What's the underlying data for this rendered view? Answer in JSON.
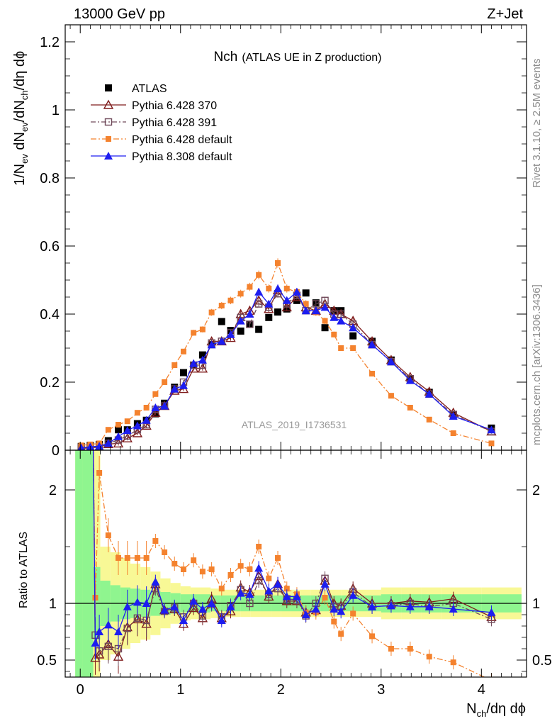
{
  "header": {
    "left": "13000 GeV pp",
    "right": "Z+Jet"
  },
  "side_labels": {
    "top": "Rivet 3.1.10, ≥ 2.5M events",
    "bottom": "mcplots.cern.ch [arXiv:1306.3436]"
  },
  "plot_title_main": "Nch",
  "plot_title_sub": "(ATLAS UE in Z production)",
  "analysis_label": "ATLAS_2019_I1736531",
  "x_axis_label": "N",
  "x_axis_label_sub": "ch",
  "x_axis_label_rest": "/dη dϕ",
  "ratio_label": "Ratio to ATLAS",
  "y_axis_parts": {
    "p1": "1/N",
    "s1": "ev",
    "p2": " dN",
    "s2": "ev",
    "p3": "/dN",
    "s3": "ch",
    "p4": "/dη dϕ"
  },
  "legend": [
    {
      "label": "ATLAS"
    },
    {
      "label": "Pythia 6.428 370"
    },
    {
      "label": "Pythia 6.428 391"
    },
    {
      "label": "Pythia 6.428 default"
    },
    {
      "label": "Pythia 8.308 default"
    }
  ],
  "colors": {
    "atlas": "#000000",
    "p370": "#7f1c1c",
    "p391": "#704a5a",
    "pdef": "#f4822e",
    "p8": "#1d1df0",
    "band_inner": "#8ff58f",
    "band_outer": "#f8f896"
  },
  "chart_data": [
    {
      "type": "scatter",
      "panel": "main",
      "xlabel": "Nch/dη dϕ",
      "ylabel": "1/Nev dNev/dNch/dη dϕ",
      "xlim": [
        -0.15,
        4.45
      ],
      "ylim": [
        0,
        1.25
      ],
      "x_ticks": [
        0,
        1,
        2,
        3,
        4
      ],
      "y_ticks": [
        0,
        0.2,
        0.4,
        0.6,
        0.8,
        1,
        1.2
      ],
      "x": [
        0.01,
        0.1,
        0.19,
        0.28,
        0.38,
        0.47,
        0.57,
        0.66,
        0.75,
        0.84,
        0.94,
        1.03,
        1.13,
        1.22,
        1.31,
        1.41,
        1.5,
        1.6,
        1.69,
        1.78,
        1.88,
        1.97,
        2.06,
        2.16,
        2.25,
        2.35,
        2.44,
        2.53,
        2.6,
        2.72,
        2.91,
        3.1,
        3.29,
        3.48,
        3.72,
        4.1
      ],
      "series": [
        {
          "name": "ATLAS",
          "marker": "filled-square",
          "values": [
            0.011,
            0.014,
            0.017,
            0.028,
            0.06,
            0.06,
            0.078,
            0.088,
            0.107,
            0.138,
            0.185,
            0.228,
            0.25,
            0.28,
            0.31,
            0.378,
            0.352,
            0.35,
            0.37,
            0.355,
            0.39,
            0.406,
            0.415,
            0.44,
            0.462,
            0.433,
            0.36,
            0.41,
            0.41,
            0.336,
            0.32,
            0.265,
            0.21,
            0.17,
            0.105,
            0.065
          ]
        },
        {
          "name": "Pythia 6.428 370",
          "marker": "open-triangle",
          "values": [
            0.005,
            0.007,
            0.009,
            0.018,
            0.02,
            0.035,
            0.05,
            0.072,
            0.11,
            0.13,
            0.175,
            0.18,
            0.24,
            0.24,
            0.32,
            0.32,
            0.33,
            0.4,
            0.41,
            0.44,
            0.415,
            0.47,
            0.42,
            0.45,
            0.42,
            0.41,
            0.43,
            0.41,
            0.4,
            0.38,
            0.32,
            0.265,
            0.215,
            0.172,
            0.11,
            0.055
          ]
        },
        {
          "name": "Pythia 6.428 391",
          "marker": "open-square",
          "values": [
            0.008,
            0.009,
            0.01,
            0.02,
            0.03,
            0.042,
            0.06,
            0.075,
            0.12,
            0.13,
            0.18,
            0.2,
            0.25,
            0.25,
            0.315,
            0.32,
            0.345,
            0.39,
            0.37,
            0.43,
            0.42,
            0.46,
            0.43,
            0.455,
            0.41,
            0.43,
            0.44,
            0.4,
            0.4,
            0.37,
            0.31,
            0.26,
            0.21,
            0.165,
            0.105,
            0.055
          ]
        },
        {
          "name": "Pythia 6.428 default",
          "marker": "filled-square",
          "values": [
            0.014,
            0.017,
            0.02,
            0.06,
            0.075,
            0.085,
            0.11,
            0.125,
            0.165,
            0.2,
            0.25,
            0.29,
            0.345,
            0.355,
            0.405,
            0.425,
            0.44,
            0.46,
            0.48,
            0.515,
            0.475,
            0.55,
            0.475,
            0.465,
            0.43,
            0.405,
            0.38,
            0.34,
            0.3,
            0.3,
            0.225,
            0.16,
            0.125,
            0.09,
            0.05,
            0.02
          ]
        },
        {
          "name": "Pythia 8.308 default",
          "marker": "filled-triangle",
          "values": [
            0.007,
            0.01,
            0.012,
            0.02,
            0.04,
            0.058,
            0.072,
            0.088,
            0.125,
            0.13,
            0.18,
            0.19,
            0.255,
            0.265,
            0.31,
            0.32,
            0.34,
            0.38,
            0.4,
            0.465,
            0.43,
            0.475,
            0.44,
            0.465,
            0.41,
            0.41,
            0.42,
            0.39,
            0.38,
            0.36,
            0.31,
            0.26,
            0.205,
            0.165,
            0.1,
            0.06
          ]
        }
      ]
    },
    {
      "type": "scatter",
      "panel": "ratio",
      "ylabel": "Ratio to ATLAS",
      "ylim": [
        0.35,
        2.35
      ],
      "y_ticks": [
        0.5,
        1,
        2
      ],
      "reference_line": 1,
      "x": [
        0.15,
        0.19,
        0.28,
        0.38,
        0.47,
        0.57,
        0.66,
        0.75,
        0.84,
        0.94,
        1.03,
        1.13,
        1.22,
        1.31,
        1.41,
        1.5,
        1.6,
        1.69,
        1.78,
        1.88,
        1.97,
        2.06,
        2.16,
        2.25,
        2.35,
        2.44,
        2.53,
        2.6,
        2.72,
        2.91,
        3.1,
        3.29,
        3.48,
        3.72,
        4.1
      ],
      "series": [
        {
          "name": "Pythia 6.428 370",
          "values": [
            0.52,
            0.55,
            0.64,
            0.53,
            0.79,
            0.86,
            0.82,
            1.17,
            0.94,
            0.95,
            0.82,
            0.96,
            0.87,
            1.04,
            0.87,
            0.93,
            1.14,
            1.1,
            1.24,
            1.06,
            1.17,
            1.02,
            1.02,
            0.92,
            0.94,
            1.2,
            1.0,
            0.98,
            1.13,
            1.0,
            1.0,
            1.02,
            1.01,
            1.04,
            0.88
          ]
        },
        {
          "name": "Pythia 6.428 391",
          "values": [
            0.72,
            0.58,
            0.62,
            0.6,
            0.78,
            0.87,
            0.85,
            1.13,
            0.93,
            0.96,
            0.88,
            1.0,
            0.89,
            0.99,
            0.88,
            0.98,
            1.12,
            1.0,
            1.2,
            1.08,
            1.13,
            1.04,
            1.03,
            0.89,
            1.0,
            1.22,
            0.97,
            0.97,
            1.1,
            0.97,
            0.98,
            1.0,
            0.97,
            1.0,
            0.86
          ]
        },
        {
          "name": "Pythia 6.428 default",
          "values": [
            1.05,
            2.15,
            1.6,
            1.4,
            1.4,
            1.4,
            1.4,
            1.55,
            1.45,
            1.35,
            1.3,
            1.38,
            1.28,
            1.3,
            1.13,
            1.25,
            1.33,
            1.3,
            1.5,
            1.22,
            1.4,
            1.13,
            1.08,
            0.92,
            0.92,
            1.05,
            0.84,
            0.73,
            0.91,
            0.71,
            0.6,
            0.6,
            0.53,
            0.48,
            0.32
          ]
        },
        {
          "name": "Pythia 8.308 default",
          "values": [
            0.65,
            0.75,
            0.81,
            0.75,
            0.97,
            1.01,
            1.0,
            1.19,
            0.94,
            0.97,
            0.85,
            1.02,
            0.95,
            1.0,
            0.85,
            0.97,
            1.09,
            1.08,
            1.31,
            1.11,
            1.17,
            1.06,
            1.06,
            0.9,
            0.95,
            1.17,
            0.95,
            0.93,
            1.07,
            0.97,
            0.98,
            0.97,
            0.97,
            0.95,
            0.92
          ]
        }
      ],
      "band_x": [
        -0.05,
        0.02,
        0.13,
        0.2,
        0.3,
        0.4,
        0.5,
        0.6,
        0.7,
        0.8,
        0.9,
        1.0,
        1.1,
        1.2,
        1.3,
        1.4,
        1.5,
        1.6,
        1.7,
        1.8,
        1.9,
        2.0,
        2.1,
        2.2,
        2.3,
        2.4,
        2.5,
        2.6,
        2.7,
        2.8,
        3.0,
        3.2,
        3.4,
        3.6,
        3.8,
        4.0,
        4.4
      ],
      "band_inner": [
        [
          0.3,
          3.0
        ],
        [
          0.3,
          3.0
        ],
        [
          0.68,
          1.32
        ],
        [
          0.8,
          1.2
        ],
        [
          0.84,
          1.16
        ],
        [
          0.86,
          1.14
        ],
        [
          0.87,
          1.13
        ],
        [
          0.88,
          1.12
        ],
        [
          0.89,
          1.11
        ],
        [
          0.9,
          1.1
        ],
        [
          0.91,
          1.09
        ],
        [
          0.92,
          1.08
        ],
        [
          0.92,
          1.08
        ],
        [
          0.92,
          1.08
        ],
        [
          0.93,
          1.07
        ],
        [
          0.93,
          1.07
        ],
        [
          0.93,
          1.07
        ],
        [
          0.93,
          1.07
        ],
        [
          0.93,
          1.07
        ],
        [
          0.93,
          1.07
        ],
        [
          0.93,
          1.07
        ],
        [
          0.93,
          1.07
        ],
        [
          0.93,
          1.07
        ],
        [
          0.93,
          1.07
        ],
        [
          0.93,
          1.07
        ],
        [
          0.93,
          1.07
        ],
        [
          0.93,
          1.07
        ],
        [
          0.93,
          1.07
        ],
        [
          0.93,
          1.07
        ],
        [
          0.93,
          1.07
        ],
        [
          0.92,
          1.08
        ],
        [
          0.92,
          1.08
        ],
        [
          0.92,
          1.08
        ],
        [
          0.92,
          1.08
        ],
        [
          0.92,
          1.08
        ],
        [
          0.92,
          1.08
        ]
      ],
      "band_outer": [
        [
          0.3,
          3.0
        ],
        [
          0.3,
          3.0
        ],
        [
          0.3,
          3.0
        ],
        [
          0.5,
          1.5
        ],
        [
          0.55,
          1.45
        ],
        [
          0.6,
          1.4
        ],
        [
          0.65,
          1.35
        ],
        [
          0.68,
          1.32
        ],
        [
          0.72,
          1.28
        ],
        [
          0.78,
          1.22
        ],
        [
          0.82,
          1.18
        ],
        [
          0.85,
          1.15
        ],
        [
          0.86,
          1.14
        ],
        [
          0.86,
          1.14
        ],
        [
          0.87,
          1.13
        ],
        [
          0.88,
          1.12
        ],
        [
          0.88,
          1.12
        ],
        [
          0.88,
          1.12
        ],
        [
          0.88,
          1.12
        ],
        [
          0.88,
          1.12
        ],
        [
          0.88,
          1.12
        ],
        [
          0.88,
          1.12
        ],
        [
          0.88,
          1.12
        ],
        [
          0.88,
          1.12
        ],
        [
          0.88,
          1.12
        ],
        [
          0.88,
          1.12
        ],
        [
          0.88,
          1.12
        ],
        [
          0.88,
          1.12
        ],
        [
          0.88,
          1.12
        ],
        [
          0.88,
          1.12
        ],
        [
          0.86,
          1.14
        ],
        [
          0.86,
          1.14
        ],
        [
          0.86,
          1.14
        ],
        [
          0.86,
          1.14
        ],
        [
          0.86,
          1.14
        ],
        [
          0.86,
          1.14
        ]
      ]
    }
  ]
}
